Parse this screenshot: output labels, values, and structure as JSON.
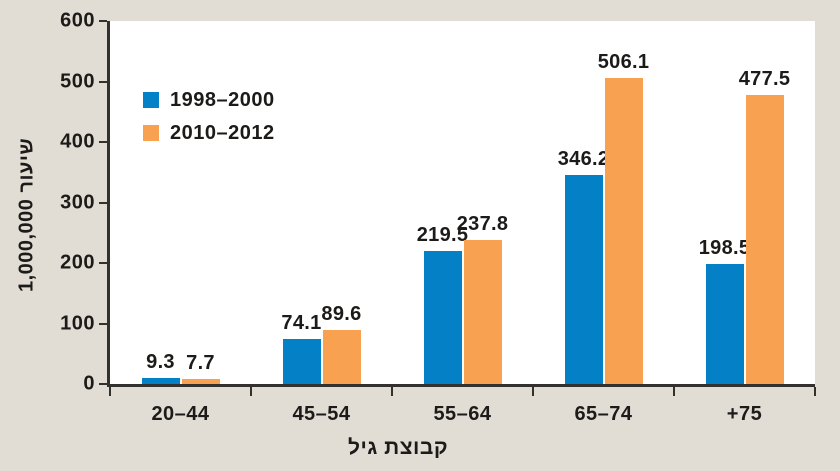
{
  "colors": {
    "background": "#e1ddd4",
    "plot_background": "#ffffff",
    "axis": "#33312d",
    "text": "#1c1b19",
    "series1": "#0480c7",
    "series2": "#f8a251"
  },
  "legend": {
    "items": [
      {
        "label": "1998–2000",
        "color": "#0480c7"
      },
      {
        "label": "2010–2012",
        "color": "#f8a251"
      }
    ]
  },
  "chart_data": {
    "type": "bar",
    "categories": [
      "20–44",
      "45–54",
      "55–64",
      "65–74",
      "+75"
    ],
    "series": [
      {
        "name": "1998–2000",
        "color": "#0480c7",
        "values": [
          9.3,
          74.1,
          219.5,
          346.2,
          198.5
        ]
      },
      {
        "name": "2010–2012",
        "color": "#f8a251",
        "values": [
          7.7,
          89.6,
          237.8,
          506.1,
          477.5
        ]
      }
    ],
    "value_labels": {
      "series1": [
        "9.3",
        "74.1",
        "219.5",
        "346.2",
        "198.5"
      ],
      "series2": [
        "7.7",
        "89.6",
        "237.8",
        "506.1",
        "477.5"
      ]
    },
    "title": "",
    "xlabel": "קבוצת גיל",
    "ylabel": "שיעור 1,000,000",
    "ylim": [
      0,
      600
    ],
    "yticks": [
      0,
      100,
      200,
      300,
      400,
      500,
      600
    ],
    "grid": false,
    "legend_position": "upper-left-inside"
  }
}
